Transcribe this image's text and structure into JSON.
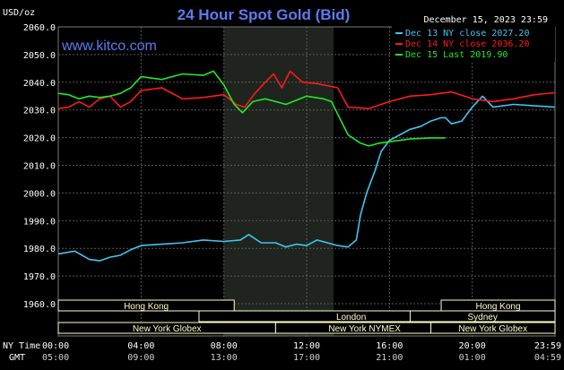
{
  "header": {
    "unit": "USD/oz",
    "title": "24 Hour Spot Gold (Bid)",
    "date": "December 15, 2023 23:59",
    "watermark": "www.kitco.com"
  },
  "axis_labels": {
    "ny_time": "NY Time",
    "gmt": "GMT"
  },
  "colors": {
    "background": "#000000",
    "plot_bg": "#000000",
    "grid": "#5a5a5a",
    "axis_text": "#ffffff",
    "title": "#5b7cf0",
    "watermark": "#5b7cf0",
    "highlight": "#1f241f",
    "session_box": "#ffffcc"
  },
  "sessions": [
    {
      "label": "Hong Kong",
      "start": 0,
      "end": 8.5,
      "row": 0
    },
    {
      "label": "London",
      "start": 6.8,
      "end": 21.5,
      "row": 1
    },
    {
      "label": "New York Globex",
      "start": 0,
      "end": 10.5,
      "row": 2
    },
    {
      "label": "New York NYMEX",
      "start": 10.5,
      "end": 19.1,
      "row": 2
    },
    {
      "label": "NY Globex",
      "start": 19.1,
      "end": 24,
      "row": 2
    },
    {
      "label": "Hong Kong",
      "start": 18.5,
      "end": 24,
      "row": 0
    },
    {
      "label": "Sydney",
      "start": 17.0,
      "end": 24,
      "row": 1
    },
    {
      "label": "New York Globex",
      "start": 18.0,
      "end": 24,
      "row": 2
    }
  ],
  "chart_data": {
    "type": "line",
    "ylim": [
      1960,
      2060
    ],
    "yticks": [
      "1960.0",
      "1970.0",
      "1980.0",
      "1990.0",
      "2000.0",
      "2010.0",
      "2020.0",
      "2030.0",
      "2040.0",
      "2050.0",
      "2060.0"
    ],
    "xticks_ny": [
      "00:00",
      "04:00",
      "08:00",
      "12:00",
      "16:00",
      "20:00",
      "23:59"
    ],
    "xticks_gmt": [
      "05:00",
      "09:00",
      "13:00",
      "17:00",
      "21:00",
      "01:00",
      "04:59"
    ],
    "x_hours": [
      0,
      4,
      8,
      12,
      16,
      20,
      24
    ],
    "highlight_hours": [
      8,
      13.3
    ],
    "series": [
      {
        "name": "Dec 13 NY close 2027.20",
        "color": "#3fc6f2",
        "points": [
          [
            0,
            1978.0
          ],
          [
            0.8,
            1979.0
          ],
          [
            1.5,
            1976.0
          ],
          [
            2.0,
            1975.5
          ],
          [
            2.5,
            1976.8
          ],
          [
            3.0,
            1977.5
          ],
          [
            3.5,
            1979.5
          ],
          [
            4.0,
            1981.0
          ],
          [
            5.0,
            1981.5
          ],
          [
            6.0,
            1982.0
          ],
          [
            7.0,
            1983.0
          ],
          [
            8.0,
            1982.5
          ],
          [
            8.8,
            1983.0
          ],
          [
            9.2,
            1985.0
          ],
          [
            9.8,
            1982.0
          ],
          [
            10.5,
            1982.0
          ],
          [
            11.0,
            1980.5
          ],
          [
            11.5,
            1981.5
          ],
          [
            12.0,
            1981.0
          ],
          [
            12.5,
            1983.0
          ],
          [
            13.0,
            1982.0
          ],
          [
            13.5,
            1981.0
          ],
          [
            14.0,
            1980.5
          ],
          [
            14.4,
            1983.0
          ],
          [
            14.6,
            1992.0
          ],
          [
            14.9,
            2000.0
          ],
          [
            15.3,
            2008.0
          ],
          [
            15.6,
            2015.0
          ],
          [
            16.0,
            2019.0
          ],
          [
            16.5,
            2021.0
          ],
          [
            17.0,
            2023.0
          ],
          [
            17.5,
            2024.0
          ],
          [
            18.0,
            2026.0
          ],
          [
            18.5,
            2027.2
          ],
          [
            18.7,
            2027.2
          ],
          [
            19.0,
            2025.0
          ],
          [
            19.5,
            2026.0
          ],
          [
            20.0,
            2031.0
          ],
          [
            20.5,
            2035.0
          ],
          [
            21.0,
            2031.0
          ],
          [
            22.0,
            2032.0
          ],
          [
            23.0,
            2031.5
          ],
          [
            24.0,
            2031.0
          ]
        ]
      },
      {
        "name": "Dec 14 NY close 2036.20",
        "color": "#ff1a1a",
        "points": [
          [
            0,
            2030.5
          ],
          [
            0.5,
            2031.0
          ],
          [
            1.0,
            2033.0
          ],
          [
            1.5,
            2031.0
          ],
          [
            2.0,
            2034.0
          ],
          [
            2.5,
            2035.0
          ],
          [
            3.0,
            2031.0
          ],
          [
            3.5,
            2033.0
          ],
          [
            4.0,
            2037.0
          ],
          [
            5.0,
            2038.0
          ],
          [
            6.0,
            2034.0
          ],
          [
            7.0,
            2034.5
          ],
          [
            8.0,
            2035.5
          ],
          [
            8.6,
            2032.0
          ],
          [
            9.0,
            2031.0
          ],
          [
            9.5,
            2036.0
          ],
          [
            10.0,
            2040.0
          ],
          [
            10.4,
            2043.0
          ],
          [
            10.8,
            2038.0
          ],
          [
            11.2,
            2044.0
          ],
          [
            11.8,
            2040.0
          ],
          [
            12.5,
            2039.5
          ],
          [
            13.5,
            2038.0
          ],
          [
            14.0,
            2031.0
          ],
          [
            15.0,
            2030.5
          ],
          [
            16.0,
            2033.0
          ],
          [
            17.0,
            2035.0
          ],
          [
            18.0,
            2035.5
          ],
          [
            19.0,
            2036.5
          ],
          [
            20.0,
            2034.0
          ],
          [
            21.0,
            2033.0
          ],
          [
            22.0,
            2034.0
          ],
          [
            23.0,
            2035.5
          ],
          [
            24.0,
            2036.2
          ]
        ]
      },
      {
        "name": "Dec 15 Last 2019.90",
        "color": "#22e822",
        "points": [
          [
            0,
            2036.0
          ],
          [
            0.5,
            2035.5
          ],
          [
            1.0,
            2034.0
          ],
          [
            1.5,
            2035.0
          ],
          [
            2.0,
            2034.5
          ],
          [
            2.5,
            2035.0
          ],
          [
            3.0,
            2036.0
          ],
          [
            3.5,
            2038.0
          ],
          [
            4.0,
            2042.0
          ],
          [
            5.0,
            2041.0
          ],
          [
            6.0,
            2043.0
          ],
          [
            7.0,
            2042.5
          ],
          [
            7.5,
            2044.0
          ],
          [
            8.0,
            2039.0
          ],
          [
            8.5,
            2032.0
          ],
          [
            8.9,
            2029.0
          ],
          [
            9.4,
            2033.0
          ],
          [
            10.0,
            2034.0
          ],
          [
            10.5,
            2033.0
          ],
          [
            11.0,
            2032.0
          ],
          [
            12.0,
            2035.0
          ],
          [
            12.8,
            2034.0
          ],
          [
            13.2,
            2033.0
          ],
          [
            13.6,
            2027.0
          ],
          [
            14.0,
            2021.0
          ],
          [
            14.6,
            2018.0
          ],
          [
            15.0,
            2017.0
          ],
          [
            15.5,
            2018.0
          ],
          [
            16.0,
            2018.5
          ],
          [
            17.0,
            2019.5
          ],
          [
            18.0,
            2019.9
          ],
          [
            18.7,
            2019.9
          ]
        ]
      }
    ]
  }
}
